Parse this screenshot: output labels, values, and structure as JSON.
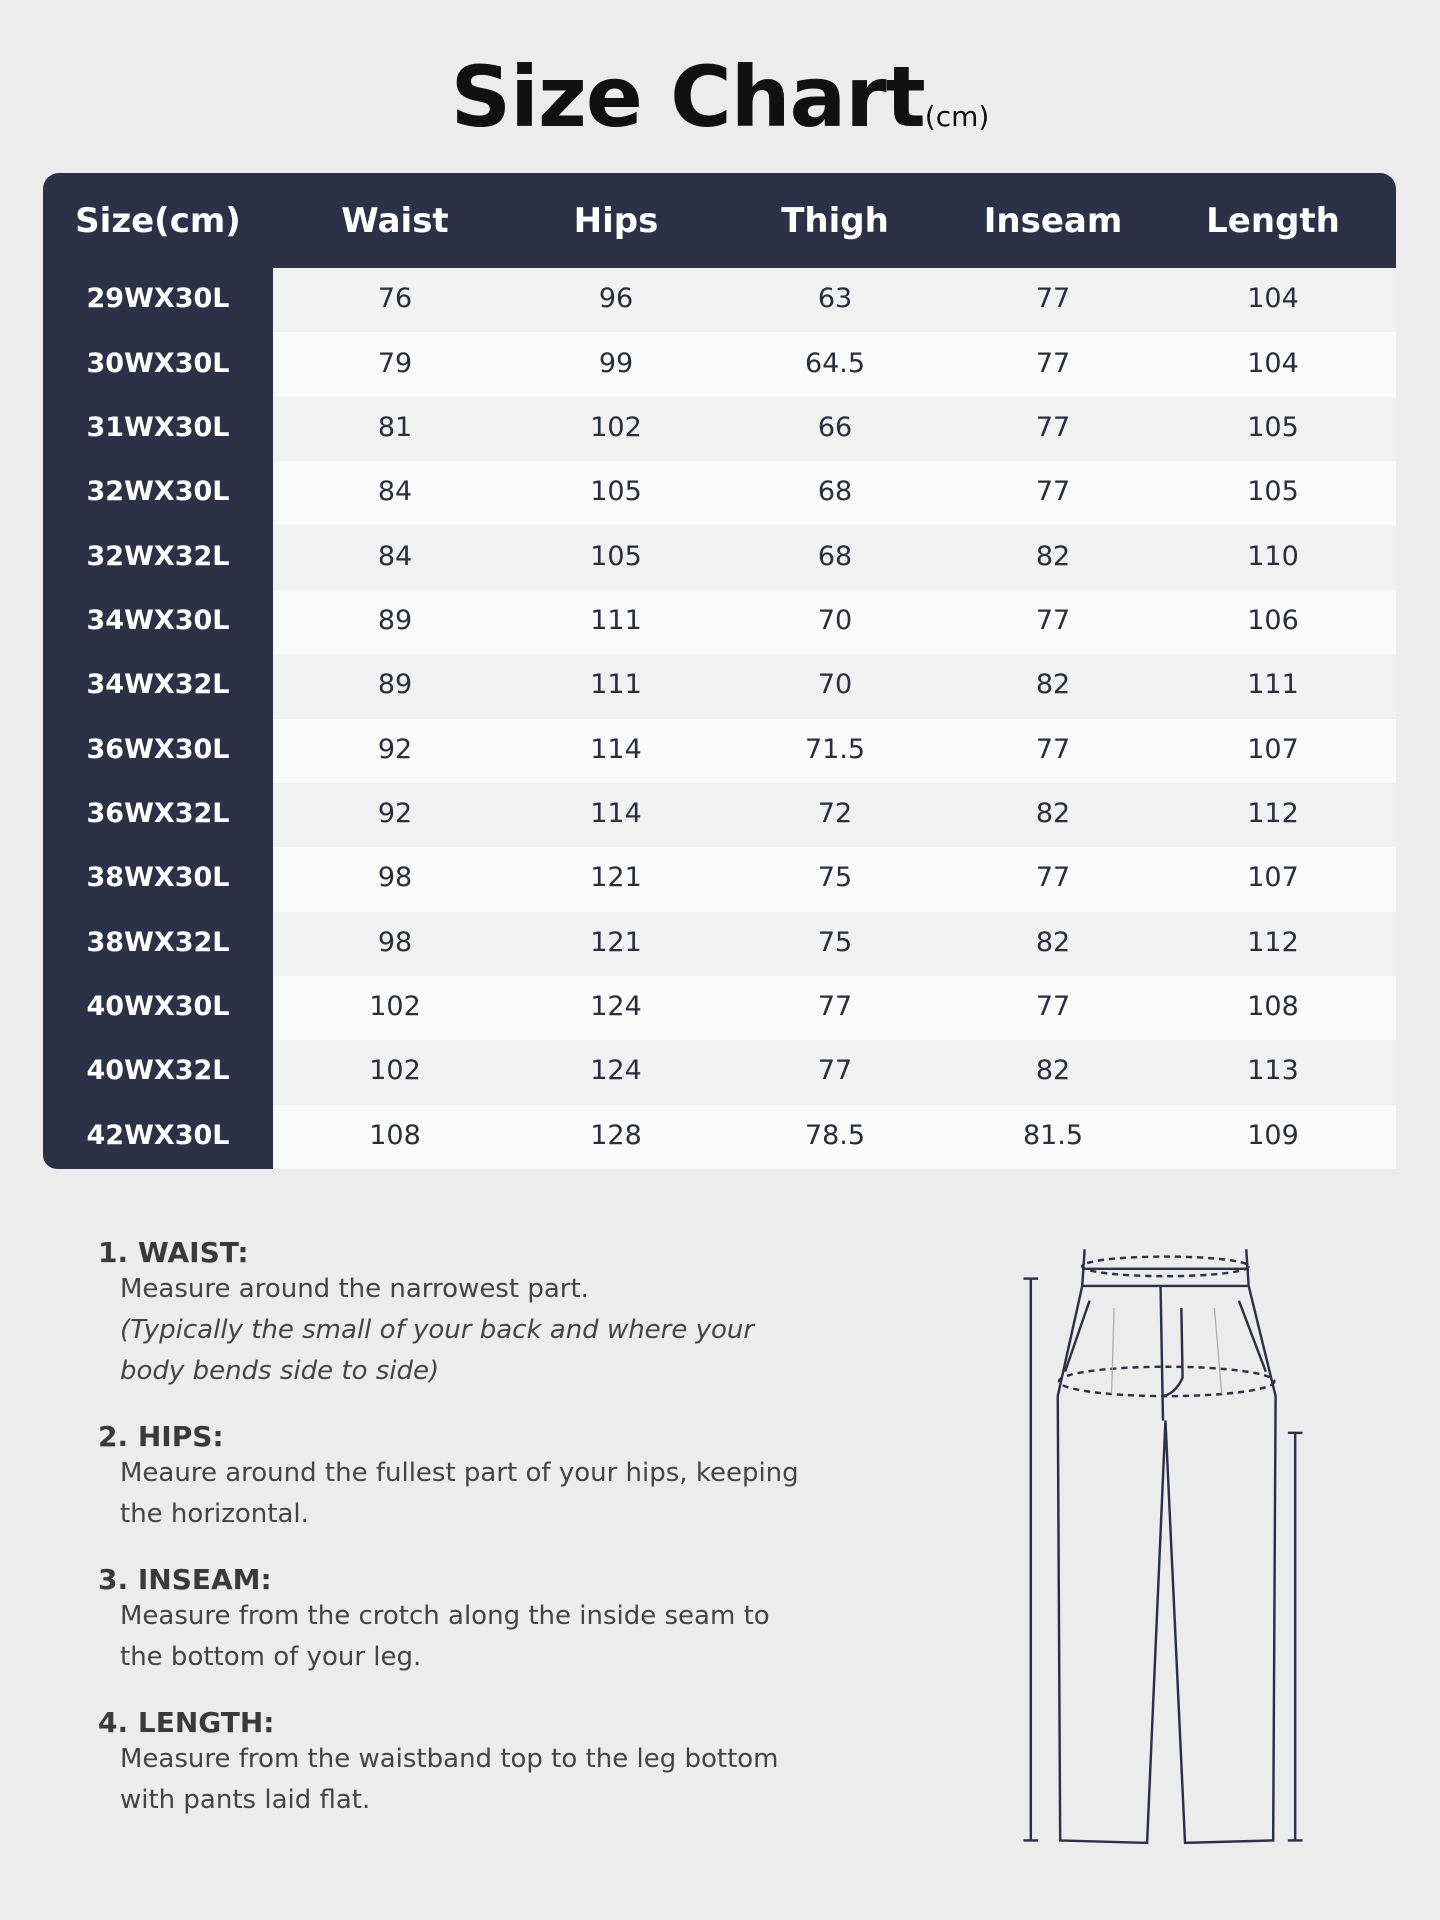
{
  "title": "Size Chart",
  "unit": "(cm)",
  "table": {
    "header": [
      "Size(cm)",
      "Waist",
      "Hips",
      "Thigh",
      "Inseam",
      "Length"
    ],
    "rows": [
      [
        "29WX30L",
        76,
        96,
        63,
        77,
        104
      ],
      [
        "30WX30L",
        79,
        99,
        64.5,
        77,
        104
      ],
      [
        "31WX30L",
        81,
        102,
        66,
        77,
        105
      ],
      [
        "32WX30L",
        84,
        105,
        68,
        77,
        105
      ],
      [
        "32WX32L",
        84,
        105,
        68,
        82,
        110
      ],
      [
        "34WX30L",
        89,
        111,
        70,
        77,
        106
      ],
      [
        "34WX32L",
        89,
        111,
        70,
        82,
        111
      ],
      [
        "36WX30L",
        92,
        114,
        71.5,
        77,
        107
      ],
      [
        "36WX32L",
        92,
        114,
        72,
        82,
        112
      ],
      [
        "38WX30L",
        98,
        121,
        75,
        77,
        107
      ],
      [
        "38WX32L",
        98,
        121,
        75,
        82,
        112
      ],
      [
        "40WX30L",
        102,
        124,
        77,
        77,
        108
      ],
      [
        "40WX32L",
        102,
        124,
        77,
        82,
        113
      ],
      [
        "42WX30L",
        108,
        128,
        78.5,
        81.5,
        109
      ]
    ]
  },
  "instructions": [
    {
      "heading": "1. WAIST:",
      "lines": [
        "Measure around the narrowest part."
      ],
      "note": [
        "(Typically the small of your back and where your",
        "body bends side to side)"
      ]
    },
    {
      "heading": "2. HIPS:",
      "lines": [
        "Meaure around the fullest part of your hips, keeping",
        "the horizontal."
      ]
    },
    {
      "heading": "3. INSEAM:",
      "lines": [
        "Measure from the crotch along the inside seam to",
        "the bottom of your leg."
      ]
    },
    {
      "heading": "4. LENGTH:",
      "lines": [
        "Measure from the waistband top to the leg bottom",
        "with pants laid flat."
      ]
    }
  ]
}
